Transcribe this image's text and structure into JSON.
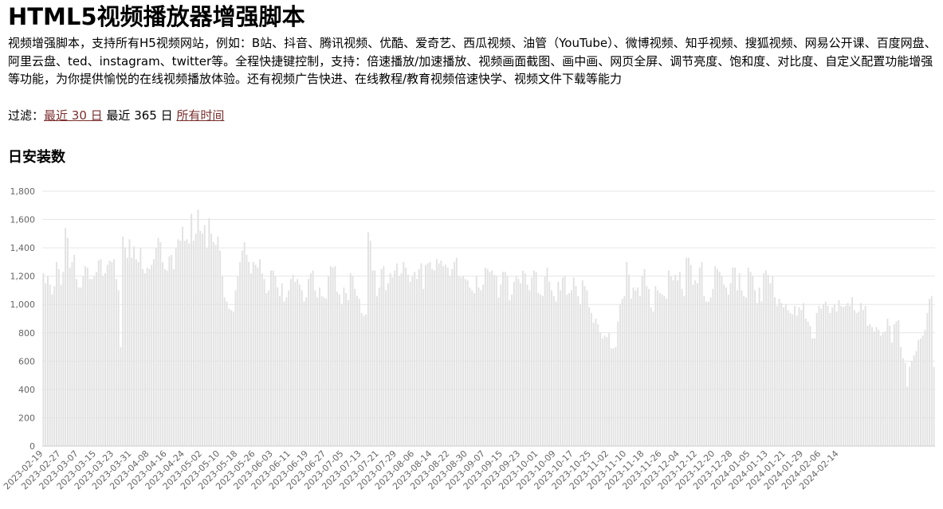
{
  "page": {
    "title": "HTML5视频播放器增强脚本",
    "description": "视频增强脚本，支持所有H5视频网站，例如：B站、抖音、腾讯视频、优酷、爱奇艺、西瓜视频、油管（YouTube）、微博视频、知乎视频、搜狐视频、网易公开课、百度网盘、阿里云盘、ted、instagram、twitter等。全程快捷键控制，支持：倍速播放/加速播放、视频画面截图、画中画、网页全屏、调节亮度、饱和度、对比度、自定义配置功能增强等功能，为你提供愉悦的在线视频播放体验。还有视频广告快进、在线教程/教育视频倍速快学、视频文件下载等能力"
  },
  "filter": {
    "label": "过滤：",
    "options": [
      "最近 30 日",
      "最近 365 日",
      "所有时间"
    ]
  },
  "colors": {
    "bar": "#e2e2e2",
    "grid": "#e6e6e6",
    "axis_text": "#666666",
    "link": "#7b2e2e"
  },
  "chart_data": {
    "type": "bar",
    "title": "日安装数",
    "ylim": [
      0,
      1800
    ],
    "yticks": [
      "0",
      "200",
      "400",
      "600",
      "800",
      "1,000",
      "1,200",
      "1,400",
      "1,600",
      "1,800"
    ],
    "grid": "horizontal",
    "x_tick_labels": [
      "2023-02-19",
      "2023-02-27",
      "2023-03-07",
      "2023-03-15",
      "2023-03-23",
      "2023-03-31",
      "2023-04-08",
      "2023-04-16",
      "2023-04-24",
      "2023-05-02",
      "2023-05-10",
      "2023-05-18",
      "2023-05-26",
      "2023-06-03",
      "2023-06-11",
      "2023-06-19",
      "2023-06-27",
      "2023-07-05",
      "2023-07-13",
      "2023-07-21",
      "2023-07-29",
      "2023-08-06",
      "2023-08-14",
      "2023-08-22",
      "2023-08-30",
      "2023-09-07",
      "2023-09-15",
      "2023-09-23",
      "2023-10-01",
      "2023-10-09",
      "2023-10-17",
      "2023-10-25",
      "2023-11-02",
      "2023-11-10",
      "2023-11-18",
      "2023-11-26",
      "2023-12-04",
      "2023-12-12",
      "2023-12-20",
      "2023-12-28",
      "2024-01-05",
      "2024-01-13",
      "2024-01-21",
      "2024-01-29",
      "2024-02-06",
      "2024-02-14"
    ],
    "values": [
      1220,
      1150,
      1200,
      1140,
      1070,
      1130,
      1300,
      1250,
      1140,
      1230,
      1540,
      1470,
      1260,
      1300,
      1350,
      1180,
      1120,
      1120,
      1200,
      1270,
      1260,
      1180,
      1180,
      1200,
      1230,
      1310,
      1320,
      1200,
      1220,
      1280,
      1310,
      1300,
      1320,
      1180,
      1100,
      700,
      1480,
      1400,
      1330,
      1460,
      1330,
      1410,
      1320,
      1300,
      1400,
      1250,
      1220,
      1260,
      1250,
      1280,
      1320,
      1400,
      1470,
      1440,
      1300,
      1250,
      1240,
      1340,
      1350,
      1250,
      1400,
      1460,
      1450,
      1550,
      1450,
      1460,
      1430,
      1640,
      1450,
      1500,
      1670,
      1520,
      1500,
      1560,
      1400,
      1610,
      1500,
      1440,
      1420,
      1480,
      1380,
      1200,
      1050,
      1020,
      970,
      960,
      950,
      1100,
      1200,
      1300,
      1380,
      1440,
      1350,
      1300,
      1220,
      1300,
      1280,
      1260,
      1320,
      1220,
      1180,
      1080,
      1100,
      1240,
      1240,
      1200,
      1120,
      1060,
      1150,
      1020,
      1050,
      1100,
      1180,
      1210,
      1160,
      1180,
      1140,
      1100,
      1020,
      1050,
      1180,
      1220,
      1240,
      1100,
      1050,
      1120,
      1060,
      1050,
      1040,
      1200,
      1270,
      1260,
      1270,
      1090,
      1070,
      1000,
      1120,
      1080,
      1030,
      1220,
      1200,
      1110,
      1060,
      1040,
      940,
      920,
      930,
      1510,
      1450,
      1240,
      1240,
      1060,
      1120,
      1250,
      1270,
      1100,
      1150,
      1220,
      1190,
      1240,
      1290,
      1200,
      1220,
      1300,
      1260,
      1210,
      1160,
      1200,
      1230,
      1180,
      1250,
      1290,
      1110,
      1280,
      1290,
      1300,
      1250,
      1240,
      1320,
      1290,
      1310,
      1270,
      1280,
      1260,
      1200,
      1250,
      1300,
      1330,
      1200,
      1190,
      1200,
      1180,
      1170,
      1120,
      1100,
      1080,
      1200,
      1120,
      1100,
      1140,
      1260,
      1250,
      1230,
      1240,
      1210,
      1200,
      1050,
      1140,
      1230,
      1230,
      1200,
      1030,
      1070,
      1160,
      1200,
      1180,
      1150,
      1240,
      1220,
      1140,
      1100,
      1190,
      1240,
      1230,
      1080,
      1070,
      1060,
      1200,
      1260,
      1160,
      1100,
      1060,
      1020,
      1160,
      1100,
      1190,
      1200,
      1070,
      1080,
      1100,
      1190,
      1130,
      1060,
      1000,
      1170,
      1130,
      1100,
      980,
      940,
      870,
      900,
      860,
      800,
      760,
      780,
      770,
      800,
      690,
      690,
      700,
      880,
      1000,
      1040,
      1060,
      1300,
      1210,
      1040,
      1120,
      1100,
      1120,
      1060,
      1200,
      1250,
      1130,
      1110,
      980,
      950,
      1130,
      1100,
      1080,
      1070,
      1060,
      1040,
      1240,
      1200,
      1170,
      1210,
      1170,
      1230,
      1110,
      1060,
      1330,
      1330,
      1280,
      1140,
      1170,
      1150,
      1260,
      1300,
      1060,
      1020,
      1020,
      1050,
      1110,
      1270,
      1250,
      1230,
      1200,
      1140,
      1120,
      1070,
      1150,
      1260,
      1260,
      1100,
      1220,
      1100,
      1060,
      1050,
      1260,
      1230,
      1200,
      1100,
      1010,
      1120,
      1020,
      1220,
      1240,
      1210,
      1150,
      1200,
      1050,
      990,
      1040,
      1010,
      980,
      1000,
      960,
      940,
      930,
      990,
      920,
      980,
      960,
      1010,
      900,
      880,
      850,
      760,
      760,
      940,
      990,
      970,
      1000,
      1020,
      990,
      940,
      980,
      1000,
      950,
      1030,
      990,
      980,
      990,
      1010,
      990,
      1050,
      960,
      940,
      950,
      1010,
      960,
      990,
      850,
      860,
      840,
      810,
      840,
      820,
      780,
      800,
      810,
      900,
      850,
      730,
      860,
      880,
      890,
      700,
      620,
      590,
      420,
      560,
      600,
      640,
      670,
      750,
      760,
      780,
      820,
      940,
      1040,
      1060,
      560
    ]
  }
}
